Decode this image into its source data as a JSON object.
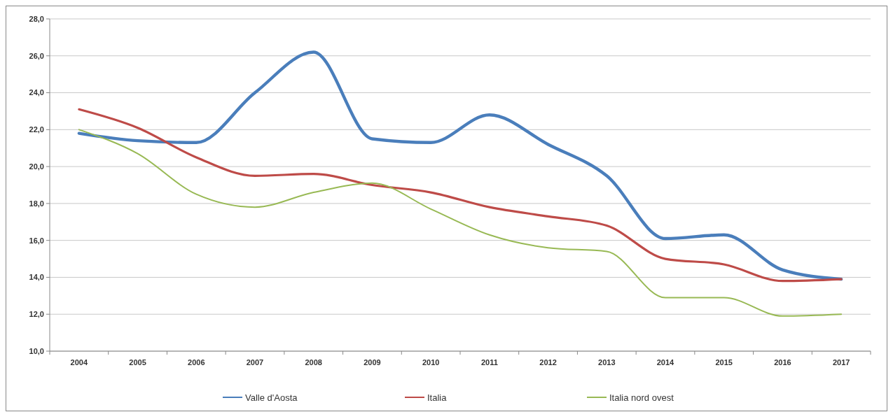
{
  "chart_data": {
    "type": "line",
    "categories": [
      "2004",
      "2005",
      "2006",
      "2007",
      "2008",
      "2009",
      "2010",
      "2011",
      "2012",
      "2013",
      "2014",
      "2015",
      "2016",
      "2017"
    ],
    "series": [
      {
        "name": "Valle d'Aosta",
        "color": "#4a7ebb",
        "values": [
          21.8,
          21.4,
          21.3,
          24.0,
          26.2,
          21.5,
          21.3,
          22.8,
          21.2,
          19.5,
          16.1,
          16.3,
          14.4,
          13.9
        ]
      },
      {
        "name": "Italia",
        "color": "#be4b48",
        "values": [
          23.1,
          22.1,
          20.5,
          19.5,
          19.6,
          19.0,
          18.6,
          17.8,
          17.3,
          16.8,
          15.0,
          14.7,
          13.8,
          13.9
        ]
      },
      {
        "name": "Italia nord ovest",
        "color": "#98b954",
        "values": [
          22.0,
          20.7,
          18.5,
          17.8,
          18.6,
          19.1,
          17.7,
          16.3,
          15.6,
          15.4,
          12.9,
          12.9,
          11.9,
          12.0
        ]
      }
    ],
    "ylim": [
      10,
      28
    ],
    "yticks": [
      {
        "value": 10,
        "label": "10,0"
      },
      {
        "value": 12,
        "label": "12,0"
      },
      {
        "value": 14,
        "label": "14,0"
      },
      {
        "value": 16,
        "label": "16,0"
      },
      {
        "value": 18,
        "label": "18,0"
      },
      {
        "value": 20,
        "label": "20,0"
      },
      {
        "value": 22,
        "label": "22,0"
      },
      {
        "value": 24,
        "label": "24,0"
      },
      {
        "value": 26,
        "label": "26,0"
      },
      {
        "value": 28,
        "label": "28,0"
      }
    ],
    "grid": "y",
    "legend": "bottom",
    "marker": "none",
    "line_style": "solid"
  }
}
